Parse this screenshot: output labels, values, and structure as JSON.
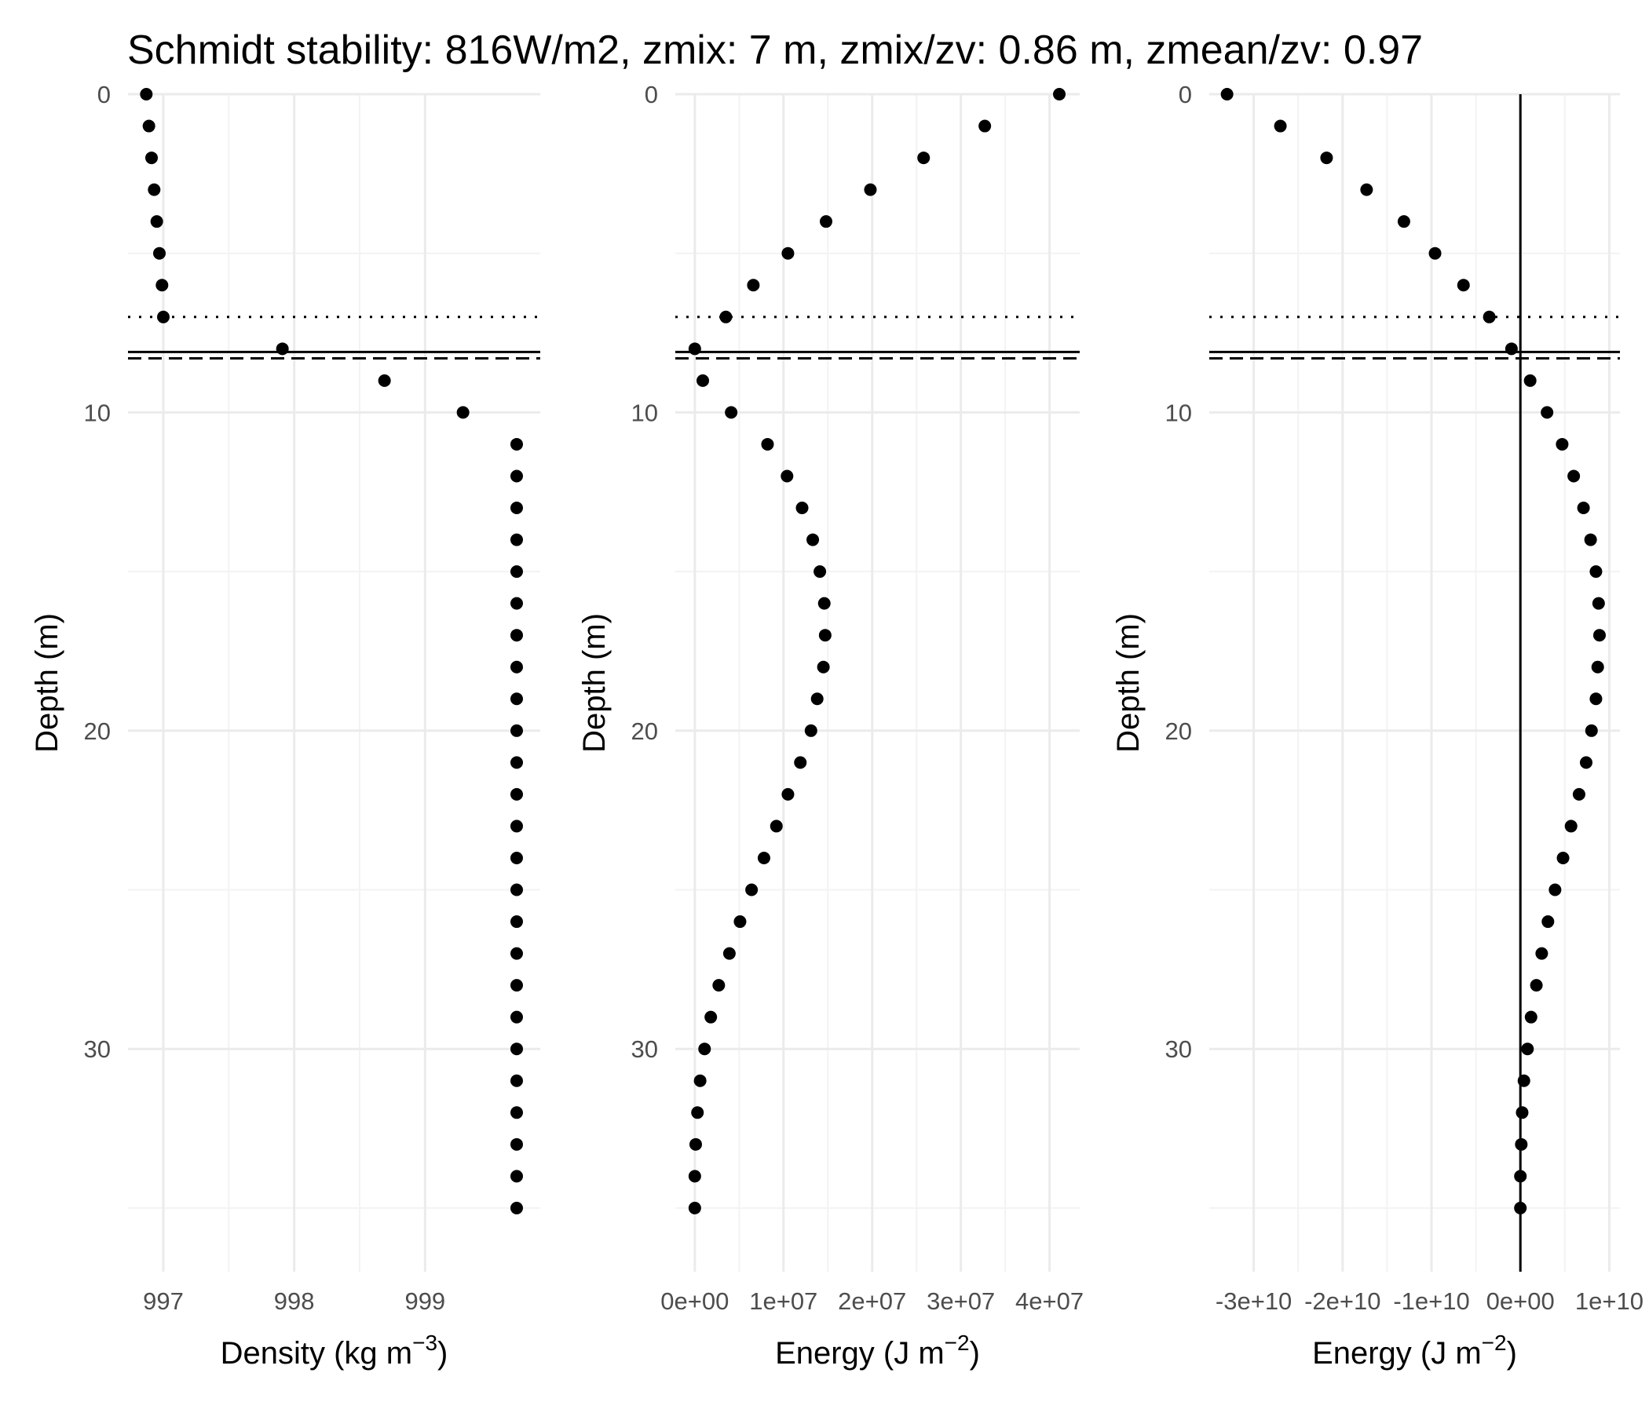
{
  "title": "Schmidt stability: 816W/m2, zmix: 7 m, zmix/zv: 0.86 m, zmean/zv: 0.97",
  "chart_data": [
    {
      "type": "scatter",
      "xlabel": "Density (kg m",
      "xlabel_sup": "−3",
      "xlabel_end": ")",
      "ylabel": "Depth (m)",
      "y_reversed": true,
      "xlim": [
        996.73,
        999.88
      ],
      "ylim": [
        0,
        37
      ],
      "x_ticks": [
        997,
        998,
        999
      ],
      "x_tick_labels": [
        "997",
        "998",
        "999"
      ],
      "y_ticks": [
        0,
        10,
        20,
        30
      ],
      "y_tick_labels": [
        "0",
        "10",
        "20",
        "30"
      ],
      "hlines": [
        {
          "y": 7,
          "style": "dotted"
        },
        {
          "y": 8.1,
          "style": "solid"
        },
        {
          "y": 8.3,
          "style": "dashed"
        }
      ],
      "vlines": [],
      "grid": true,
      "points": {
        "depth": [
          0,
          1,
          2,
          3,
          4,
          5,
          6,
          7,
          8,
          9,
          10,
          11,
          12,
          13,
          14,
          15,
          16,
          17,
          18,
          19,
          20,
          21,
          22,
          23,
          24,
          25,
          26,
          27,
          28,
          29,
          30,
          31,
          32,
          33,
          34,
          35
        ],
        "x": [
          996.87,
          996.89,
          996.91,
          996.93,
          996.95,
          996.97,
          996.99,
          997.0,
          997.91,
          998.69,
          999.29,
          999.7,
          999.7,
          999.7,
          999.7,
          999.7,
          999.7,
          999.7,
          999.7,
          999.7,
          999.7,
          999.7,
          999.7,
          999.7,
          999.7,
          999.7,
          999.7,
          999.7,
          999.7,
          999.7,
          999.7,
          999.7,
          999.7,
          999.7,
          999.7,
          999.7
        ]
      }
    },
    {
      "type": "scatter",
      "xlabel": "Energy (J m",
      "xlabel_sup": "−2",
      "xlabel_end": ")",
      "ylabel": "Depth (m)",
      "y_reversed": true,
      "xlim": [
        -2200000,
        43400000
      ],
      "ylim": [
        0,
        37
      ],
      "x_ticks": [
        0,
        10000000,
        20000000,
        30000000,
        40000000
      ],
      "x_tick_labels": [
        "0e+00",
        "1e+07",
        "2e+07",
        "3e+07",
        "4e+07"
      ],
      "y_ticks": [
        0,
        10,
        20,
        30
      ],
      "y_tick_labels": [
        "0",
        "10",
        "20",
        "30"
      ],
      "hlines": [
        {
          "y": 7,
          "style": "dotted"
        },
        {
          "y": 8.1,
          "style": "solid"
        },
        {
          "y": 8.3,
          "style": "dashed"
        }
      ],
      "vlines": [],
      "grid": true,
      "points": {
        "depth": [
          0,
          1,
          2,
          3,
          4,
          5,
          6,
          7,
          8,
          9,
          10,
          11,
          12,
          13,
          14,
          15,
          16,
          17,
          18,
          19,
          20,
          21,
          22,
          23,
          24,
          25,
          26,
          27,
          28,
          29,
          30,
          31,
          32,
          33,
          34,
          35
        ],
        "x": [
          41100000,
          32700000,
          25800000,
          19800000,
          14800000,
          10500000,
          6600000,
          3500000,
          0,
          900000,
          4100000,
          8200000,
          10400000,
          12100000,
          13300000,
          14100000,
          14600000,
          14700000,
          14500000,
          13800000,
          13100000,
          11900000,
          10500000,
          9200000,
          7800000,
          6400000,
          5100000,
          3900000,
          2700000,
          1800000,
          1100000,
          600000,
          300000,
          100000,
          0,
          0
        ]
      }
    },
    {
      "type": "scatter",
      "xlabel": "Energy (J m",
      "xlabel_sup": "−2",
      "xlabel_end": ")",
      "ylabel": "Depth (m)",
      "y_reversed": true,
      "xlim": [
        -35000000000,
        11200000000
      ],
      "ylim": [
        0,
        37
      ],
      "x_ticks": [
        -30000000000,
        -20000000000,
        -10000000000,
        0,
        10000000000
      ],
      "x_tick_labels": [
        "-3e+10",
        "-2e+10",
        "-1e+10",
        "0e+00",
        "1e+10"
      ],
      "y_ticks": [
        0,
        10,
        20,
        30
      ],
      "y_tick_labels": [
        "0",
        "10",
        "20",
        "30"
      ],
      "hlines": [
        {
          "y": 7,
          "style": "dotted"
        },
        {
          "y": 8.1,
          "style": "solid"
        },
        {
          "y": 8.3,
          "style": "dashed"
        }
      ],
      "vlines": [
        {
          "x": 0,
          "style": "solid"
        }
      ],
      "grid": true,
      "points": {
        "depth": [
          0,
          1,
          2,
          3,
          4,
          5,
          6,
          7,
          8,
          9,
          10,
          11,
          12,
          13,
          14,
          15,
          16,
          17,
          18,
          19,
          20,
          21,
          22,
          23,
          24,
          25,
          26,
          27,
          28,
          29,
          30,
          31,
          32,
          33,
          34,
          35
        ],
        "x": [
          -33000000000,
          -27000000000,
          -21800000000,
          -17300000000,
          -13100000000,
          -9600000000,
          -6400000000,
          -3500000000,
          -1000000000,
          1100000000,
          3000000000,
          4700000000,
          6000000000,
          7100000000,
          7900000000,
          8500000000,
          8800000000,
          8900000000,
          8700000000,
          8500000000,
          8000000000,
          7400000000,
          6600000000,
          5700000000,
          4800000000,
          3900000000,
          3100000000,
          2400000000,
          1800000000,
          1200000000,
          800000000,
          400000000,
          200000000,
          100000000,
          0,
          0
        ]
      }
    }
  ]
}
